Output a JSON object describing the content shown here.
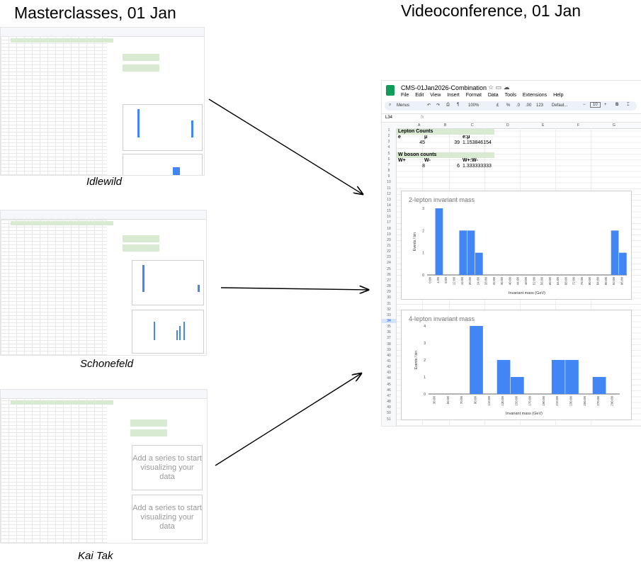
{
  "headings": {
    "left": "Masterclasses, 01 Jan",
    "right": "Videoconference, 01 Jan"
  },
  "captions": {
    "first": "Idlewild",
    "second": "Schonefeld",
    "third": "Kai Tak"
  },
  "empty_chart_text": "Add a series to start visualizing your data",
  "sheet": {
    "doc_title": "CMS-01Jan2026-Combination",
    "menu": [
      "File",
      "Edit",
      "View",
      "Insert",
      "Format",
      "Data",
      "Tools",
      "Extensions",
      "Help"
    ],
    "toolbar": {
      "menus": "Menus",
      "zoom": "100%",
      "pound": "£",
      "percent": "%",
      "dec1": ".0",
      "dec2": ".00",
      "num": "123",
      "font": "Defaul...",
      "font_size": "10"
    },
    "cell_ref": "L34",
    "fx": "fx",
    "columns": [
      "A",
      "B",
      "C",
      "D",
      "E",
      "F",
      "G"
    ],
    "lepton_counts_label": "Lepton Counts",
    "lepton_headers": [
      "e",
      "μ",
      "e:μ"
    ],
    "lepton_values": [
      "45",
      "39",
      "1.153846154"
    ],
    "w_boson_label": "W boson counts",
    "w_headers": [
      "W+",
      "W-",
      "W+:W-"
    ],
    "w_values": [
      "8",
      "6",
      "1.333333333"
    ],
    "selected_row": "34"
  },
  "chart_data": [
    {
      "type": "bar",
      "title": "2-lepton invariant mass",
      "ylabel": "Events / bin",
      "xlabel": "Invariant mass (GeV)",
      "ylim": [
        0,
        3
      ],
      "yticks": [
        "0",
        "1",
        "2",
        "3"
      ],
      "x": [
        0,
        4,
        8,
        12,
        16,
        20,
        24,
        28,
        32,
        36,
        40,
        44,
        48,
        52,
        56,
        60,
        64,
        68,
        72,
        76,
        80,
        84,
        88,
        92,
        96
      ],
      "values": [
        0,
        3,
        0,
        0,
        2,
        2,
        1,
        0,
        0,
        0,
        0,
        0,
        0,
        0,
        0,
        0,
        0,
        0,
        0,
        0,
        0,
        0,
        0,
        2,
        1
      ]
    },
    {
      "type": "bar",
      "title": "4-lepton invariant mass",
      "ylabel": "Events / bin",
      "xlabel": "Invariant mass (GeV)",
      "ylim": [
        0,
        4
      ],
      "yticks": [
        "0",
        "1",
        "2",
        "3",
        "4"
      ],
      "x": [
        30,
        50,
        70,
        90,
        110,
        130,
        150,
        170,
        190,
        210,
        230,
        250,
        270,
        290
      ],
      "values": [
        0,
        0,
        0,
        4,
        0,
        2,
        1,
        0,
        0,
        2,
        2,
        0,
        1,
        0
      ]
    }
  ],
  "colors": {
    "bar": "#4285f4",
    "header_green": "#d9ead3",
    "sheets_icon": "#0f9d58"
  }
}
